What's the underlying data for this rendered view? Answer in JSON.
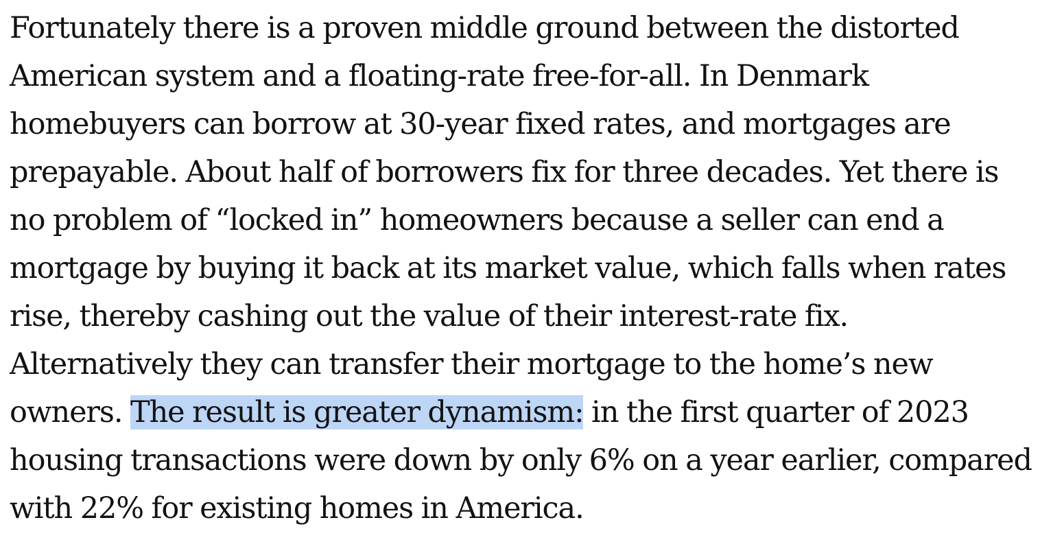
{
  "article": {
    "text_before": "Fortunately there is a proven middle ground between the distorted American system and a floating-rate free-for-all. In Denmark homebuyers can borrow at 30-year fixed rates, and mortgages are prepayable. About half of borrowers fix for three decades. Yet there is no problem of “locked in” homeowners because a seller can end a mortgage by buying it back at its market value, which falls when rates rise, thereby cashing out the value of their interest-rate fix. Alternatively they can transfer their mortgage to the home’s new owners. ",
    "highlighted_text": "The result is greater dynamism:",
    "text_after": " in the first quarter of 2023 housing transactions were down by only 6% on a year earlier, compared with 22% for existing homes in America.",
    "highlight_color": "#bdd6f6",
    "text_color": "#121212"
  }
}
